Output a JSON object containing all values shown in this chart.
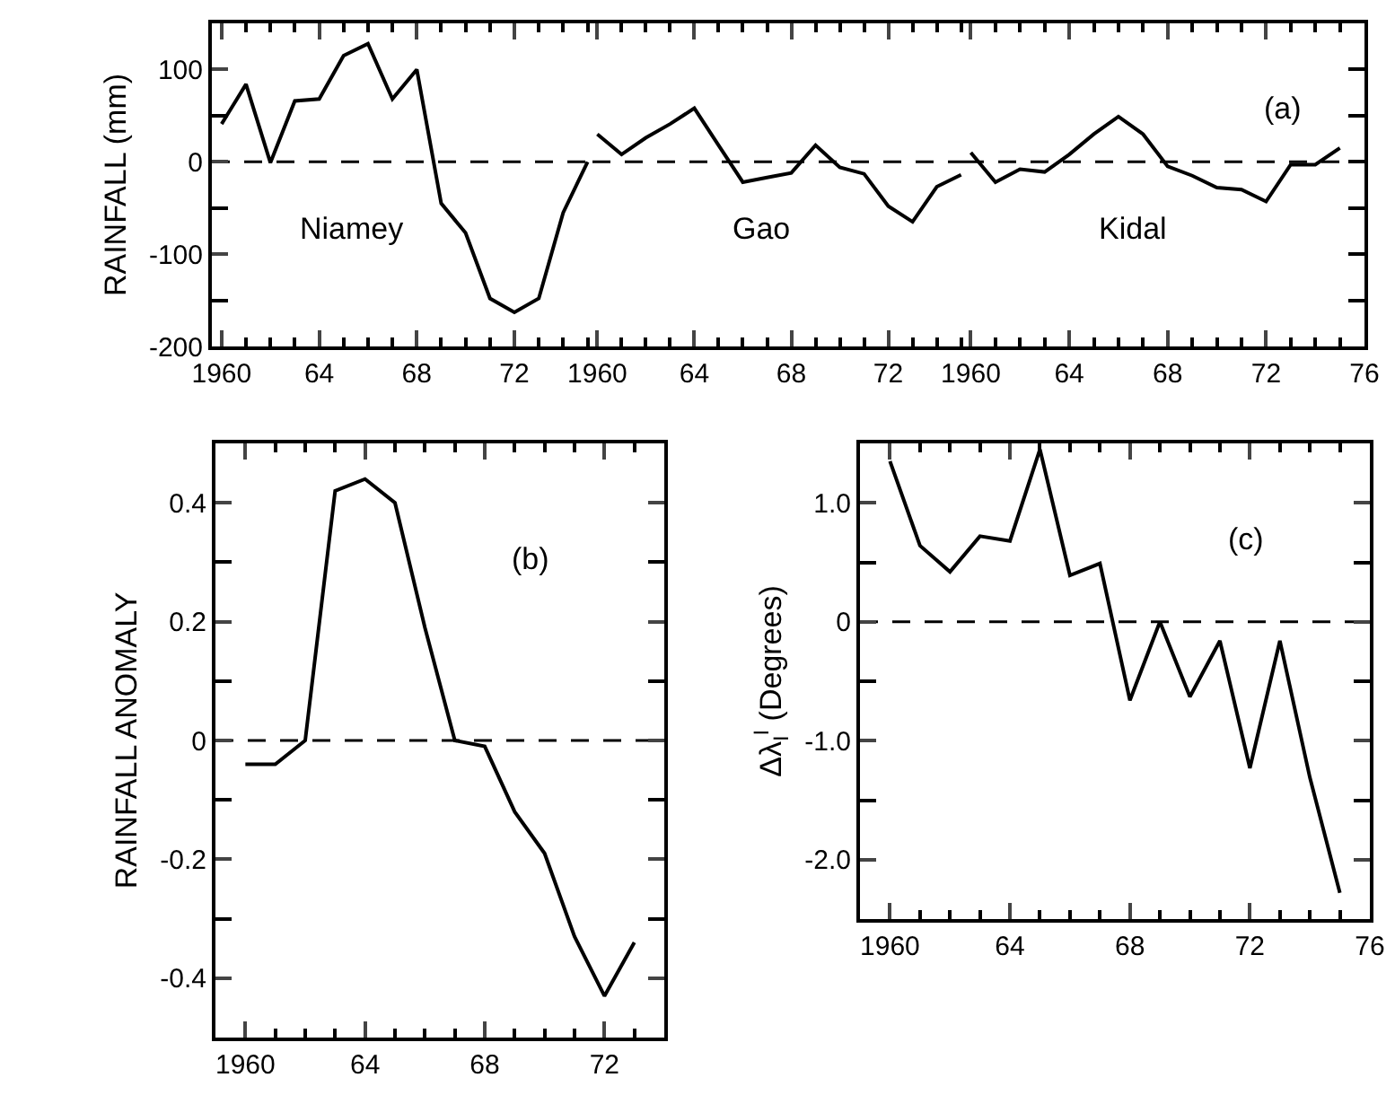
{
  "chart_data": [
    {
      "type": "line",
      "ylabel": "RAINFALL (mm)",
      "annotations": [
        "Niamey"
      ],
      "x": [
        1960,
        1961,
        1962,
        1963,
        1964,
        1965,
        1966,
        1967,
        1968,
        1969,
        1970,
        1971,
        1972,
        1973,
        1974,
        1975
      ],
      "series": [
        {
          "color": "#000000",
          "values": [
            41,
            84,
            -1,
            66,
            68,
            115,
            128,
            68,
            100,
            -45,
            -77,
            -148,
            -163,
            -148,
            -55,
            0
          ]
        }
      ],
      "xlim": [
        1959.6,
        1975.2
      ],
      "xticks": [
        1960,
        {
          "value": 1964,
          "label": "64"
        },
        {
          "value": 1968,
          "label": "68"
        },
        {
          "value": 1972,
          "label": "72"
        }
      ],
      "ylim": [
        -200,
        150
      ],
      "yticks": [
        -200,
        -100,
        0,
        100
      ],
      "ref_lines": [
        {
          "axis": "y",
          "value": 0,
          "color": "#000000",
          "line_style": "dashed"
        }
      ],
      "grid": false,
      "marker": "none",
      "line_style": "solid"
    },
    {
      "type": "line",
      "annotations": [
        "Gao"
      ],
      "x": [
        1960,
        1961,
        1962,
        1963,
        1964,
        1965,
        1966,
        1967,
        1968,
        1969,
        1970,
        1971,
        1972,
        1973,
        1974,
        1975
      ],
      "series": [
        {
          "color": "#000000",
          "values": [
            30,
            8,
            26,
            41,
            58,
            18,
            -22,
            -17,
            -12,
            18,
            -6,
            -13,
            -48,
            -65,
            -27,
            -14
          ]
        }
      ],
      "xlim": [
        1959.8,
        1975.2
      ],
      "xticks": [
        1960,
        {
          "value": 1964,
          "label": "64"
        },
        {
          "value": 1968,
          "label": "68"
        },
        {
          "value": 1972,
          "label": "72"
        }
      ],
      "ylim": [
        -200,
        150
      ],
      "yticks": [
        {
          "value": -200,
          "label": null
        },
        {
          "value": -100,
          "label": null
        },
        {
          "value": 0,
          "label": null
        },
        {
          "value": 100,
          "label": null
        }
      ],
      "tick_labels": "x",
      "ref_lines": [
        {
          "axis": "y",
          "value": 0,
          "color": "#000000",
          "line_style": "dashed"
        }
      ],
      "grid": false,
      "marker": "none",
      "line_style": "solid"
    },
    {
      "type": "line",
      "annotations": [
        "(a)",
        "Kidal"
      ],
      "x": [
        1960,
        1961,
        1962,
        1963,
        1964,
        1965,
        1966,
        1967,
        1968,
        1969,
        1970,
        1971,
        1972,
        1973,
        1974,
        1975
      ],
      "series": [
        {
          "color": "#000000",
          "values": [
            10,
            -22,
            -8,
            -11,
            8,
            30,
            49,
            30,
            -5,
            -15,
            -28,
            -30,
            -43,
            -3,
            -3,
            15
          ]
        }
      ],
      "xlim": [
        1959.8,
        1976
      ],
      "xticks": [
        1960,
        {
          "value": 1964,
          "label": "64"
        },
        {
          "value": 1968,
          "label": "68"
        },
        {
          "value": 1972,
          "label": "72"
        },
        {
          "value": 1976,
          "label": "76"
        }
      ],
      "ylim": [
        -200,
        150
      ],
      "yticks": [
        {
          "value": -200,
          "label": null
        },
        {
          "value": -100,
          "label": null
        },
        {
          "value": 0,
          "label": null
        },
        {
          "value": 100,
          "label": null
        }
      ],
      "tick_labels": "x",
      "ref_lines": [
        {
          "axis": "y",
          "value": 0,
          "color": "#000000",
          "line_style": "dashed"
        }
      ],
      "grid": false,
      "marker": "none",
      "line_style": "solid"
    },
    {
      "type": "line",
      "ylabel": "RAINFALL ANOMALY",
      "annotations": [
        "(b)"
      ],
      "x": [
        1960,
        1961,
        1962,
        1963,
        1964,
        1965,
        1966,
        1967,
        1968,
        1969,
        1970,
        1971,
        1972,
        1973
      ],
      "series": [
        {
          "color": "#000000",
          "values": [
            -0.04,
            -0.04,
            0,
            0.42,
            0.44,
            0.4,
            0.19,
            0,
            -0.01,
            -0.12,
            -0.19,
            -0.33,
            -0.43,
            -0.34
          ]
        }
      ],
      "xlim": [
        1959,
        1974
      ],
      "xticks": [
        1960,
        {
          "value": 1964,
          "label": "64"
        },
        {
          "value": 1968,
          "label": "68"
        },
        {
          "value": 1972,
          "label": "72"
        }
      ],
      "ylim": [
        -0.5,
        0.5
      ],
      "yticks": [
        -0.4,
        -0.2,
        0,
        0.2,
        0.4
      ],
      "ref_lines": [
        {
          "axis": "y",
          "value": 0,
          "color": "#000000",
          "line_style": "dashed"
        }
      ],
      "grid": false,
      "marker": "none",
      "line_style": "solid"
    },
    {
      "type": "line",
      "ylabel": "Δλ$_{I}$$^{I}$ (Degrees)",
      "annotations": [
        "(c)"
      ],
      "x": [
        1960,
        1961,
        1962,
        1963,
        1964,
        1965,
        1966,
        1967,
        1968,
        1969,
        1970,
        1971,
        1972,
        1973,
        1974,
        1975
      ],
      "series": [
        {
          "color": "#000000",
          "values": [
            1.35,
            0.64,
            0.42,
            0.72,
            0.68,
            1.45,
            0.39,
            0.49,
            -0.66,
            0,
            -0.63,
            -0.16,
            -1.23,
            -0.16,
            -1.31,
            -2.28
          ]
        }
      ],
      "xlim": [
        1959,
        1976
      ],
      "xticks": [
        1960,
        {
          "value": 1964,
          "label": "64"
        },
        {
          "value": 1968,
          "label": "68"
        },
        {
          "value": 1972,
          "label": "72"
        },
        {
          "value": 1976,
          "label": "76"
        }
      ],
      "ylim": [
        -2.5,
        1.5
      ],
      "yticks": [
        {
          "value": -2,
          "label": "-2.0"
        },
        {
          "value": -1,
          "label": "-1.0"
        },
        0,
        {
          "value": 1,
          "label": "1.0"
        }
      ],
      "ref_lines": [
        {
          "axis": "y",
          "value": 0,
          "color": "#000000",
          "line_style": "dashed"
        }
      ],
      "grid": false,
      "marker": "none",
      "line_style": "solid"
    }
  ]
}
